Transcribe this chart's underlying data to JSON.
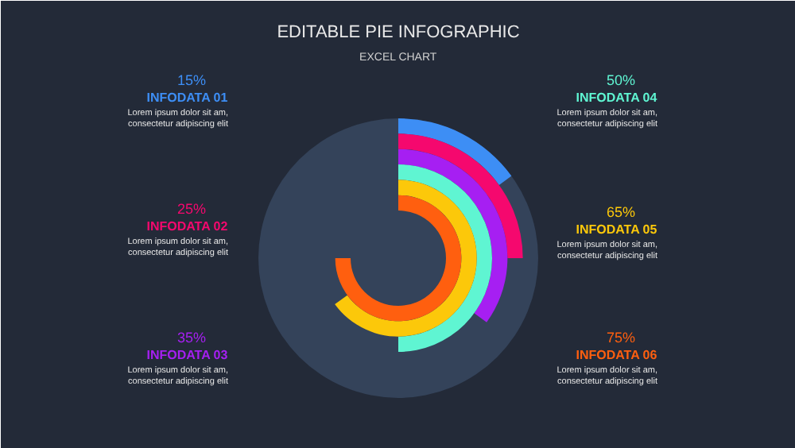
{
  "chart_data": {
    "type": "other",
    "title": "EDITABLE PIE INFOGRAPHIC",
    "subtitle": "EXCEL CHART",
    "categories": [
      "INFODATA 01",
      "INFODATA 02",
      "INFODATA 03",
      "INFODATA 04",
      "INFODATA 05",
      "INFODATA 06"
    ],
    "values": [
      15,
      25,
      35,
      50,
      65,
      75
    ],
    "value_labels": [
      "15%",
      "25%",
      "35%",
      "50%",
      "65%",
      "75%"
    ],
    "colors": [
      "#3d8ef5",
      "#f5086e",
      "#a61ff2",
      "#5ff5d2",
      "#fcc80a",
      "#ff5f0f"
    ],
    "annotations": [
      "Lorem ipsum dolor sit am,\nconsectetur adipiscing elit",
      "Lorem ipsum dolor sit am,\nconsectetur adipiscing elit",
      "Lorem ipsum dolor sit am,\nconsectetur adipiscing elit",
      "Lorem ipsum dolor sit am,\nconsectetur adipiscing elit",
      "Lorem ipsum dolor sit am,\nconsectetur adipiscing elit",
      "Lorem ipsum dolor sit am,\nconsectetur adipiscing elit"
    ]
  }
}
